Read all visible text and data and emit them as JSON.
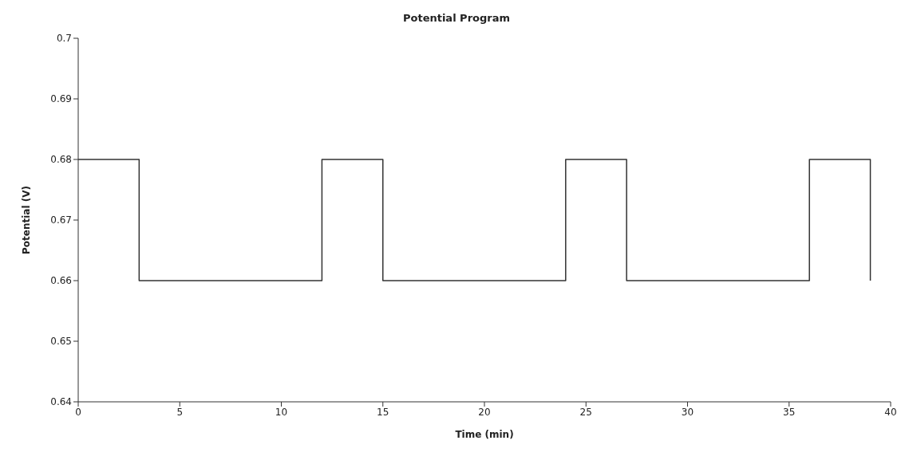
{
  "chart_data": {
    "type": "step",
    "title": "Potential Program",
    "xlabel": "Time (min)",
    "ylabel": "Potential (V)",
    "x": [
      0,
      3,
      12,
      15,
      24,
      27,
      36,
      39
    ],
    "series": [
      {
        "color": "#333333",
        "values": [
          0.68,
          0.66,
          0.68,
          0.66,
          0.68,
          0.66,
          0.68,
          0.66
        ]
      }
    ],
    "xlim": [
      0,
      40
    ],
    "xticks": [
      0,
      5,
      10,
      15,
      20,
      25,
      30,
      35,
      40
    ],
    "ylim": [
      0.64,
      0.7
    ],
    "yticks": [
      0.64,
      0.65,
      0.66,
      0.67,
      0.68,
      0.69,
      0.7
    ],
    "grid": false,
    "legend": false,
    "marker": "none",
    "line_style": "solid"
  }
}
